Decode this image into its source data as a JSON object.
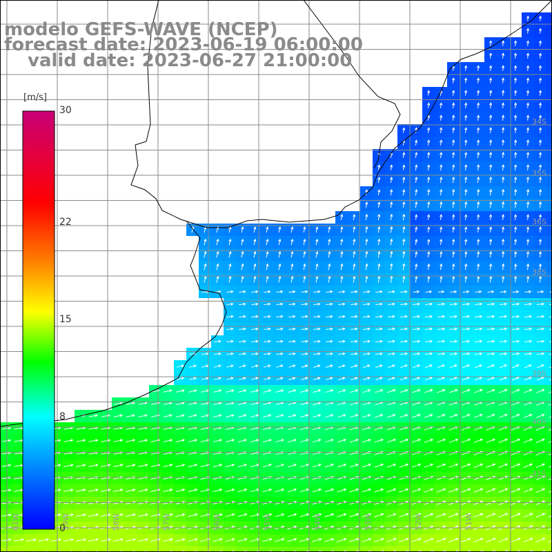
{
  "titles": {
    "model": "modelo GEFS-WAVE (NCEP)",
    "forecast": "forecast date: 2023-06-19 06:00:00",
    "valid": "valid date: 2023-06-27 21:00:00"
  },
  "colorbar": {
    "unit": "[m/s]",
    "ticks": [
      "30",
      "22",
      "15",
      "8",
      "0"
    ],
    "range": [
      0,
      30
    ],
    "colors": [
      "#0000ff",
      "#0080ff",
      "#00ffff",
      "#00ff00",
      "#ffff00",
      "#ff8000",
      "#ff0000",
      "#c80078"
    ]
  },
  "lat_labels": [
    "34S",
    "35S",
    "36S",
    "38S",
    "39S",
    "40S",
    "41S"
  ],
  "lon_labels": [
    "61W",
    "59W",
    "58W",
    "57W",
    "56W",
    "55W",
    "54W",
    "53W",
    "52W",
    "51W"
  ],
  "map": {
    "field": "wind speed and direction",
    "land_color": "#ffffff",
    "grid_color": "#a0a0a0"
  }
}
